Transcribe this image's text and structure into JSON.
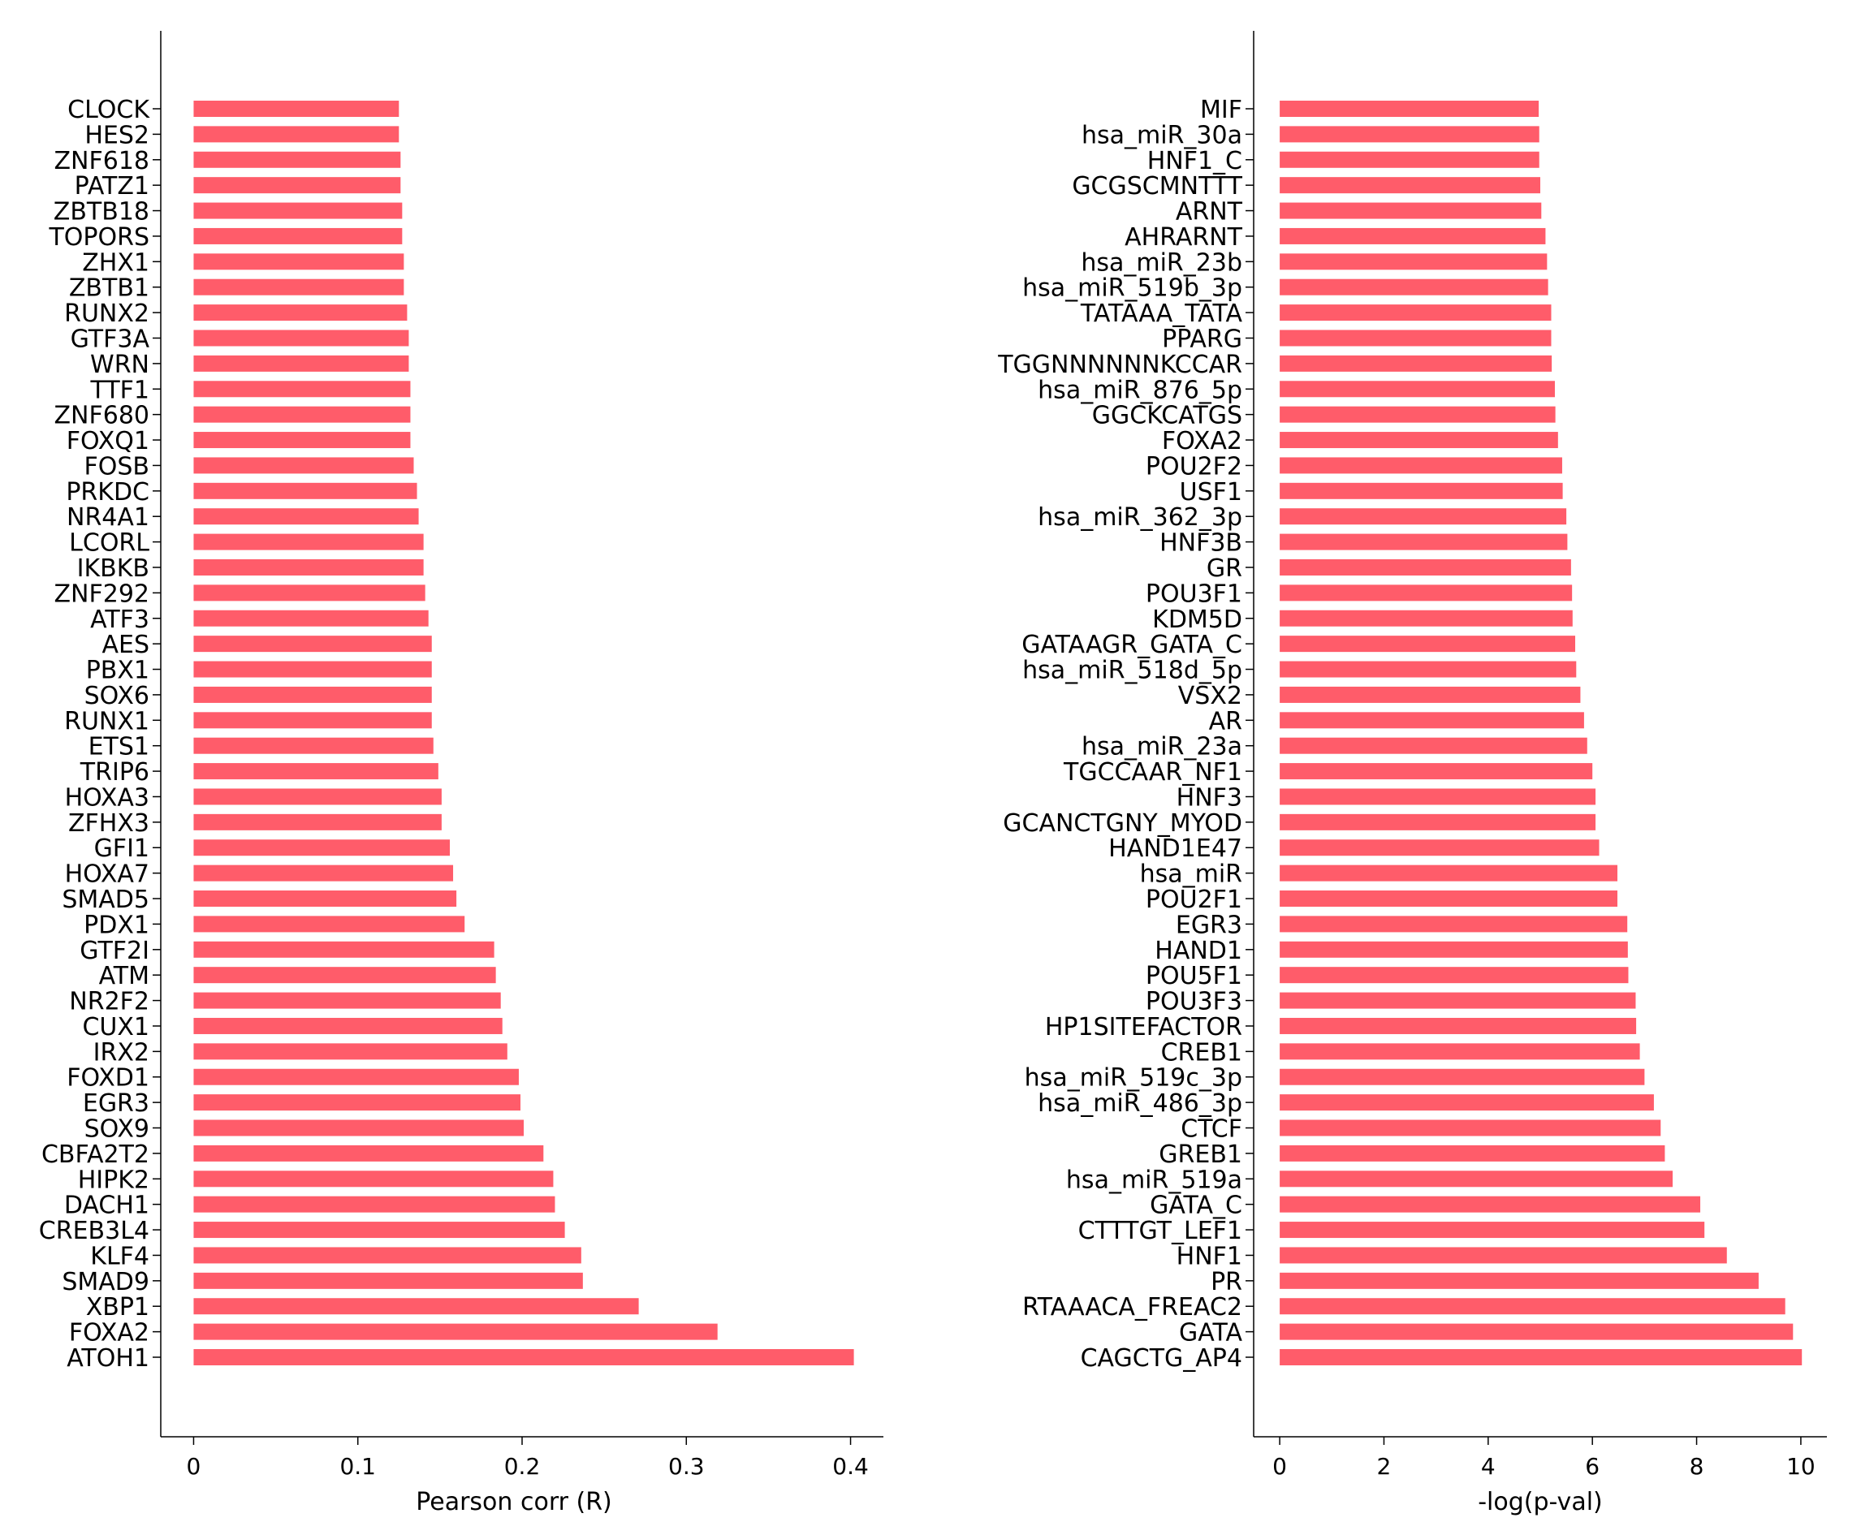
{
  "bar_color": "#ff5c6a",
  "axis_color": "#000000",
  "chart_data": [
    {
      "type": "bar",
      "orientation": "horizontal",
      "title": "",
      "xlabel": "Pearson corr (R)",
      "ylabel": "",
      "xlim": [
        -0.02,
        0.42
      ],
      "xticks": [
        0,
        0.1,
        0.2,
        0.3,
        0.4
      ],
      "xtick_labels": [
        "0",
        "0.1",
        "0.2",
        "0.3",
        "0.4"
      ],
      "grid": false,
      "categories": [
        "CLOCK",
        "HES2",
        "ZNF618",
        "PATZ1",
        "ZBTB18",
        "TOPORS",
        "ZHX1",
        "ZBTB1",
        "RUNX2",
        "GTF3A",
        "WRN",
        "TTF1",
        "ZNF680",
        "FOXQ1",
        "FOSB",
        "PRKDC",
        "NR4A1",
        "LCORL",
        "IKBKB",
        "ZNF292",
        "ATF3",
        "AES",
        "PBX1",
        "SOX6",
        "RUNX1",
        "ETS1",
        "TRIP6",
        "HOXA3",
        "ZFHX3",
        "GFI1",
        "HOXA7",
        "SMAD5",
        "PDX1",
        "GTF2I",
        "ATM",
        "NR2F2",
        "CUX1",
        "IRX2",
        "FOXD1",
        "EGR3",
        "SOX9",
        "CBFA2T2",
        "HIPK2",
        "DACH1",
        "CREB3L4",
        "KLF4",
        "SMAD9",
        "XBP1",
        "FOXA2",
        "ATOH1"
      ],
      "values": [
        0.125,
        0.125,
        0.126,
        0.126,
        0.127,
        0.127,
        0.128,
        0.128,
        0.13,
        0.131,
        0.131,
        0.132,
        0.132,
        0.132,
        0.134,
        0.136,
        0.137,
        0.14,
        0.14,
        0.141,
        0.143,
        0.145,
        0.145,
        0.145,
        0.145,
        0.146,
        0.149,
        0.151,
        0.151,
        0.156,
        0.158,
        0.16,
        0.165,
        0.183,
        0.184,
        0.187,
        0.188,
        0.191,
        0.198,
        0.199,
        0.201,
        0.213,
        0.219,
        0.22,
        0.226,
        0.236,
        0.237,
        0.271,
        0.319,
        0.402
      ]
    },
    {
      "type": "bar",
      "orientation": "horizontal",
      "title": "",
      "xlabel": "-log(p-val)",
      "ylabel": "",
      "xlim": [
        -0.5,
        10.5
      ],
      "xticks": [
        0,
        2,
        4,
        6,
        8,
        10
      ],
      "xtick_labels": [
        "0",
        "2",
        "4",
        "6",
        "8",
        "10"
      ],
      "grid": false,
      "categories": [
        "MIF",
        "hsa_miR_30a",
        "HNF1_C",
        "GCGSCMNTTT",
        "ARNT",
        "AHRARNT",
        "hsa_miR_23b",
        "hsa_miR_519b_3p",
        "TATAAA_TATA",
        "PPARG",
        "TGGNNNNNNKCCAR",
        "hsa_miR_876_5p",
        "GGCKCATGS",
        "FOXA2",
        "POU2F2",
        "USF1",
        "hsa_miR_362_3p",
        "HNF3B",
        "GR",
        "POU3F1",
        "KDM5D",
        "GATAAGR_GATA_C",
        "hsa_miR_518d_5p",
        "VSX2",
        "AR",
        "hsa_miR_23a",
        "TGCCAAR_NF1",
        "HNF3",
        "GCANCTGNY_MYOD",
        "HAND1E47",
        "hsa_miR",
        "POU2F1",
        "EGR3",
        "HAND1",
        "POU5F1",
        "POU3F3",
        "HP1SITEFACTOR",
        "CREB1",
        "hsa_miR_519c_3p",
        "hsa_miR_486_3p",
        "CTCF",
        "GREB1",
        "hsa_miR_519a",
        "GATA_C",
        "CTTTGT_LEF1",
        "HNF1",
        "PR",
        "RTAAACA_FREAC2",
        "GATA",
        "CAGCTG_AP4"
      ],
      "values": [
        4.97,
        4.98,
        4.98,
        5.0,
        5.02,
        5.1,
        5.13,
        5.15,
        5.21,
        5.21,
        5.22,
        5.28,
        5.29,
        5.34,
        5.42,
        5.43,
        5.5,
        5.52,
        5.59,
        5.61,
        5.62,
        5.67,
        5.69,
        5.77,
        5.84,
        5.9,
        6.0,
        6.06,
        6.06,
        6.13,
        6.48,
        6.48,
        6.67,
        6.68,
        6.69,
        6.83,
        6.84,
        6.91,
        7.0,
        7.18,
        7.31,
        7.39,
        7.54,
        8.07,
        8.15,
        8.58,
        9.19,
        9.7,
        9.85,
        10.02
      ]
    }
  ]
}
